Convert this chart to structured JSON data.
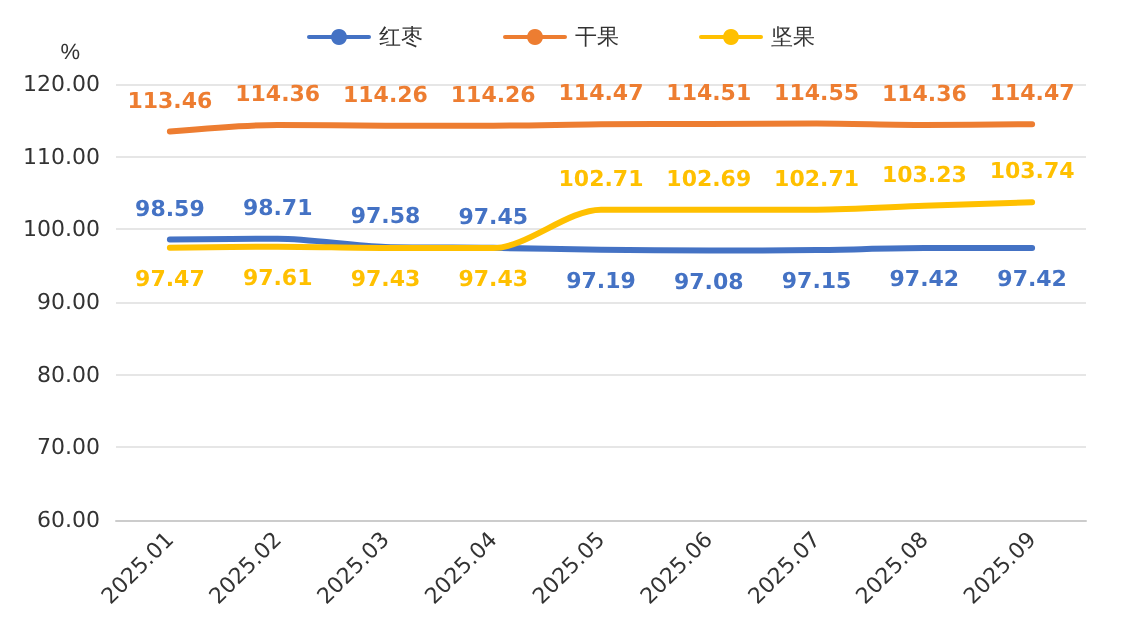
{
  "chart_data": {
    "type": "line",
    "ylabel": "%",
    "categories": [
      "2025.01",
      "2025.02",
      "2025.03",
      "2025.04",
      "2025.05",
      "2025.06",
      "2025.07",
      "2025.08",
      "2025.09"
    ],
    "series": [
      {
        "name": "红枣",
        "color": "#4472c4",
        "values": [
          98.59,
          98.71,
          97.58,
          97.45,
          97.19,
          97.08,
          97.15,
          97.42,
          97.42
        ]
      },
      {
        "name": "干果",
        "color": "#ed7d31",
        "values": [
          113.46,
          114.36,
          114.26,
          114.26,
          114.47,
          114.51,
          114.55,
          114.36,
          114.47
        ]
      },
      {
        "name": "坚果",
        "color": "#ffc000",
        "values": [
          97.47,
          97.61,
          97.43,
          97.43,
          102.71,
          102.69,
          102.71,
          103.23,
          103.74
        ]
      }
    ],
    "ylim": [
      60,
      120
    ],
    "yticks": [
      {
        "value": 60,
        "label": "60.00"
      },
      {
        "value": 70,
        "label": "70.00"
      },
      {
        "value": 80,
        "label": "80.00"
      },
      {
        "value": 90,
        "label": "90.00"
      },
      {
        "value": 100,
        "label": "100.00"
      },
      {
        "value": 110,
        "label": "110.00"
      },
      {
        "value": 120,
        "label": "120.00"
      }
    ],
    "grid": "y",
    "legend": "top",
    "data_labels": true,
    "marker": "none",
    "line_style": "solid"
  }
}
